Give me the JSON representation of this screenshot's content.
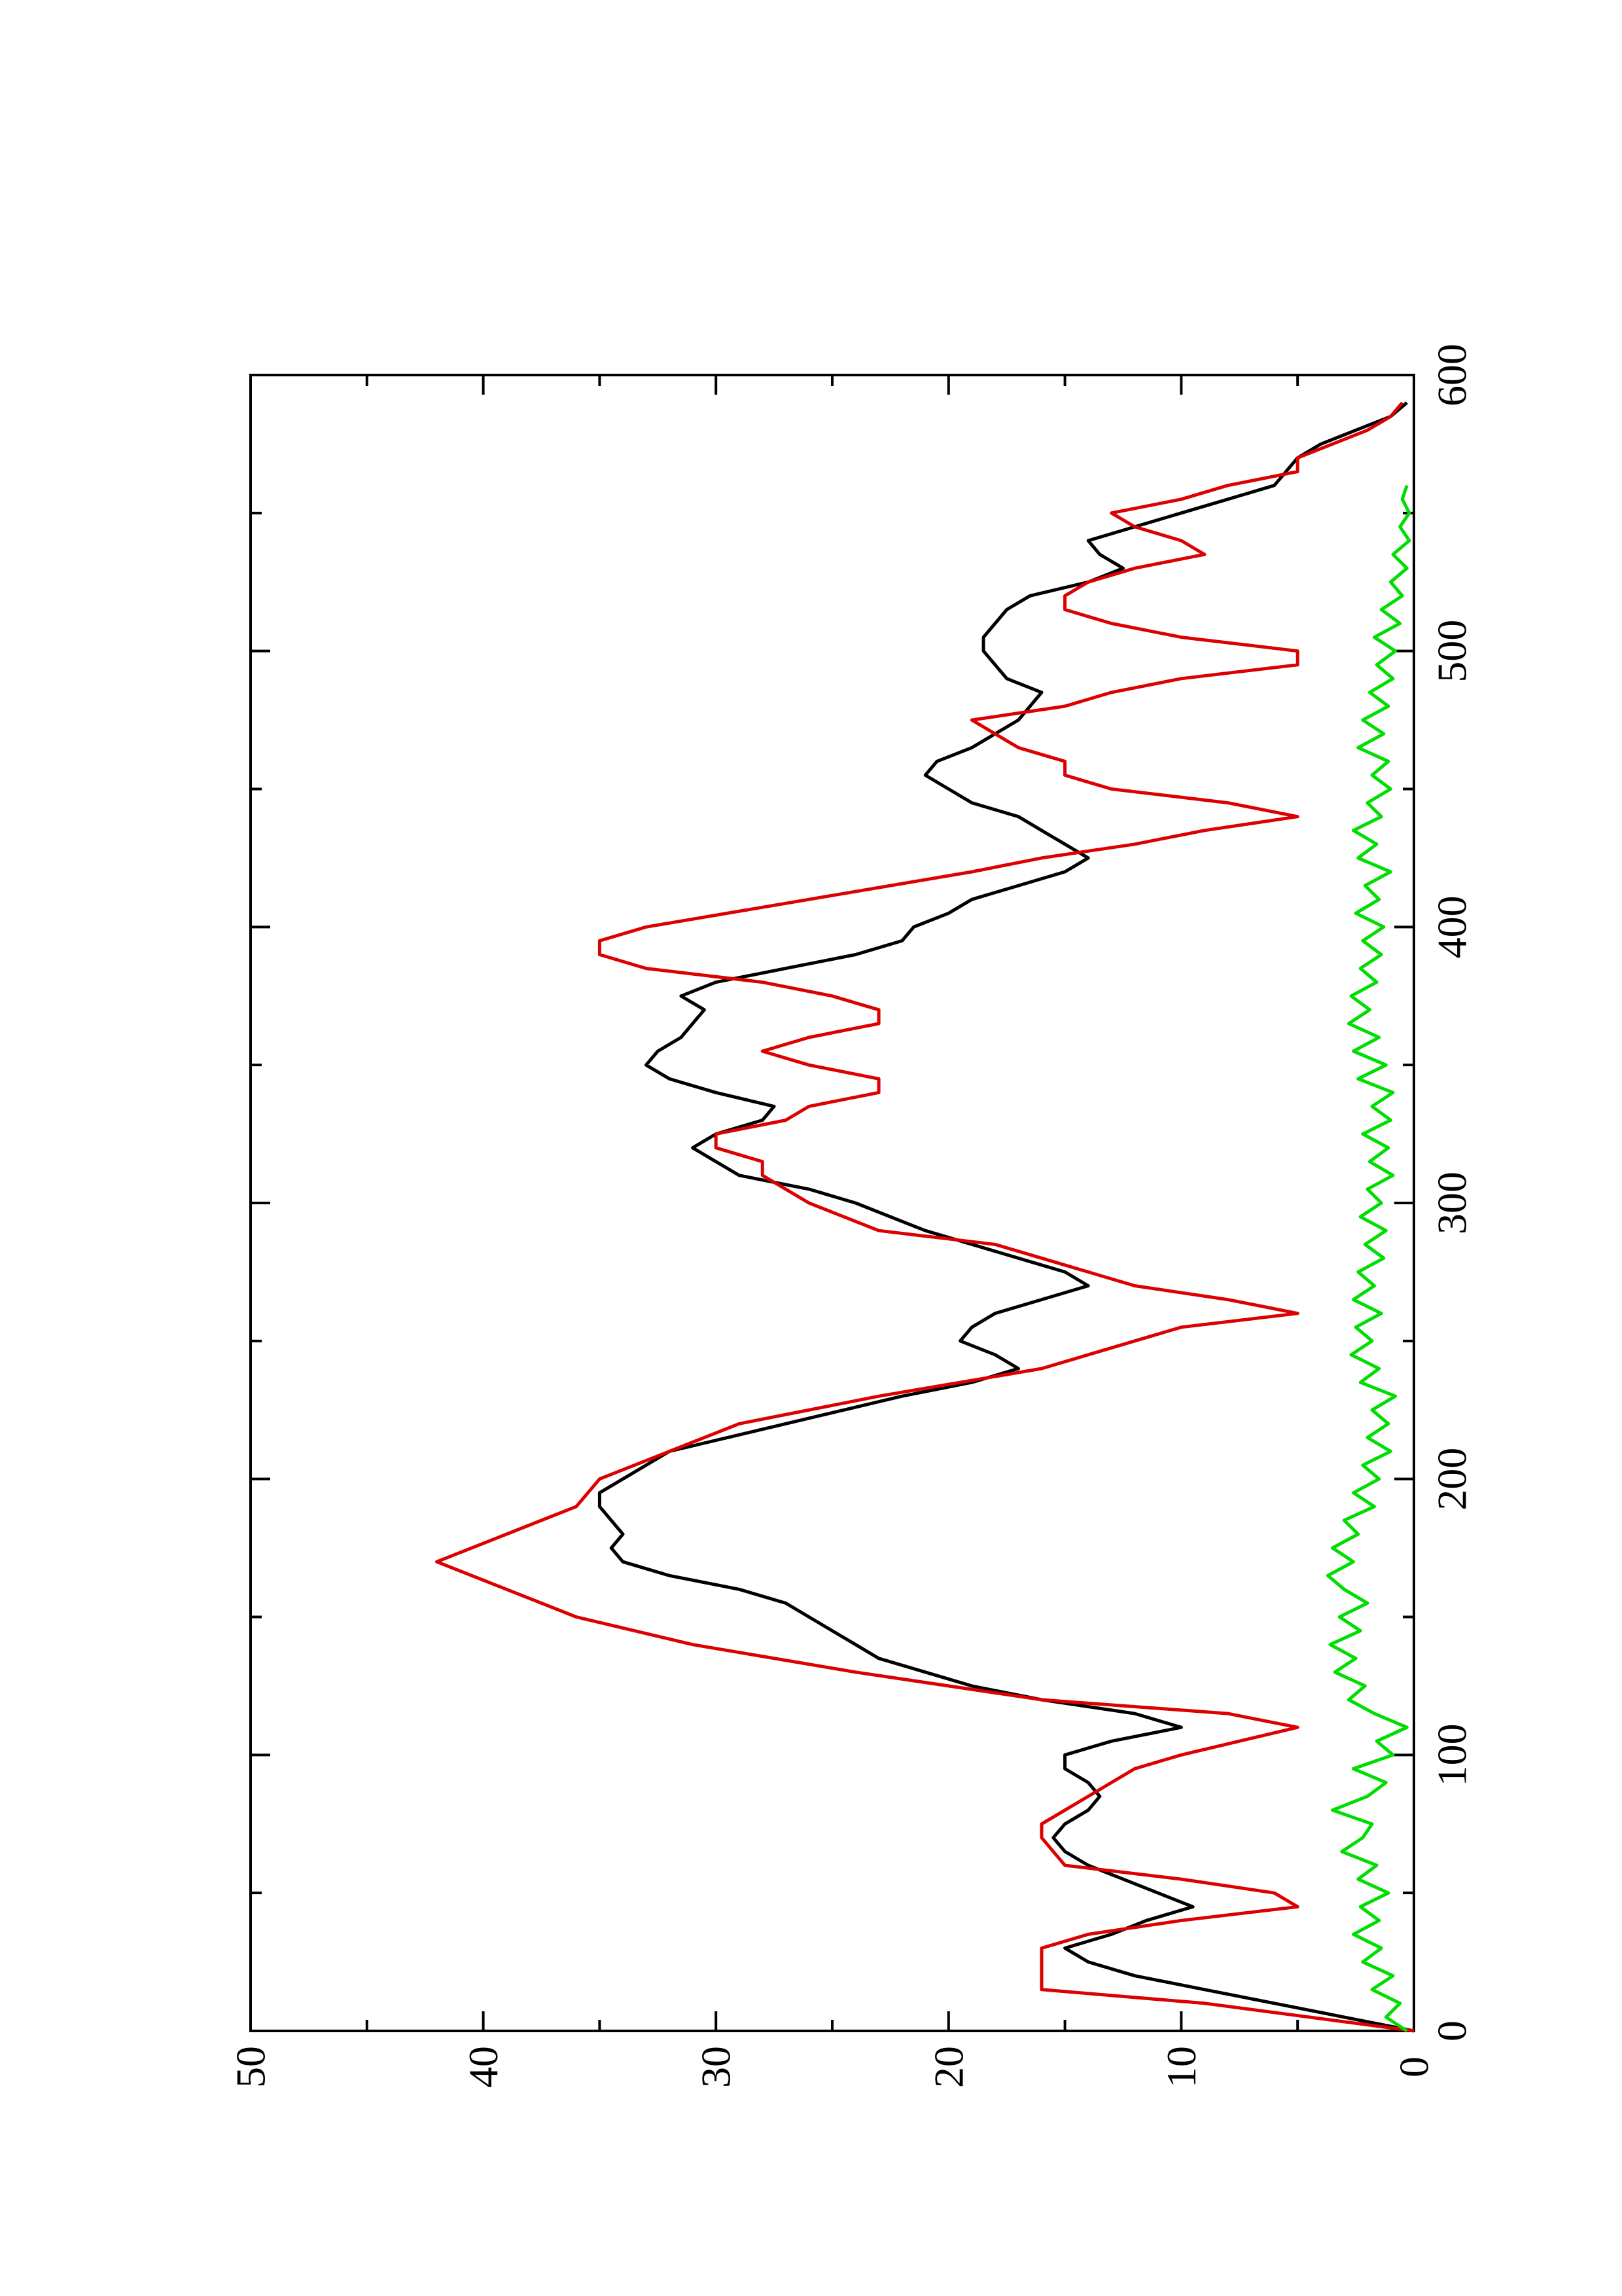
{
  "chart_data": {
    "type": "line",
    "orientation": "rotated-90-ccw",
    "title": "",
    "xlabel": "",
    "ylabel": "",
    "xlim": [
      0,
      600
    ],
    "ylim": [
      0,
      50
    ],
    "x_major_ticks": [
      0,
      100,
      200,
      300,
      400,
      500,
      600
    ],
    "x_minor_ticks": [
      50,
      150,
      250,
      350,
      450,
      550
    ],
    "y_major_ticks": [
      0,
      10,
      20,
      30,
      40,
      50
    ],
    "y_minor_ticks": [
      5,
      15,
      25,
      35,
      45
    ],
    "x_tick_labels": [
      "0",
      "100",
      "200",
      "300",
      "400",
      "500",
      "600"
    ],
    "y_tick_labels": [
      "0",
      "10",
      "20",
      "30",
      "40",
      "50"
    ],
    "grid": false,
    "legend": "none",
    "series": [
      {
        "color": "#000000",
        "points": [
          [
            0,
            0
          ],
          [
            5,
            3
          ],
          [
            10,
            6
          ],
          [
            15,
            9
          ],
          [
            20,
            12
          ],
          [
            25,
            14
          ],
          [
            30,
            15
          ],
          [
            35,
            13
          ],
          [
            40,
            11.5
          ],
          [
            45,
            9.5
          ],
          [
            50,
            11
          ],
          [
            55,
            12.5
          ],
          [
            60,
            14
          ],
          [
            65,
            15
          ],
          [
            70,
            15.5
          ],
          [
            75,
            15
          ],
          [
            80,
            14
          ],
          [
            85,
            13.5
          ],
          [
            90,
            14
          ],
          [
            95,
            15
          ],
          [
            100,
            15
          ],
          [
            105,
            13
          ],
          [
            110,
            10
          ],
          [
            115,
            12
          ],
          [
            120,
            16
          ],
          [
            125,
            19
          ],
          [
            130,
            21
          ],
          [
            135,
            23
          ],
          [
            140,
            24
          ],
          [
            145,
            25
          ],
          [
            150,
            26
          ],
          [
            155,
            27
          ],
          [
            160,
            29
          ],
          [
            165,
            32
          ],
          [
            170,
            34
          ],
          [
            175,
            34.5
          ],
          [
            180,
            34
          ],
          [
            185,
            34.5
          ],
          [
            190,
            35
          ],
          [
            195,
            35
          ],
          [
            200,
            34
          ],
          [
            210,
            32
          ],
          [
            220,
            27
          ],
          [
            230,
            22
          ],
          [
            235,
            19
          ],
          [
            240,
            17
          ],
          [
            245,
            18
          ],
          [
            250,
            19.5
          ],
          [
            255,
            19
          ],
          [
            260,
            18
          ],
          [
            265,
            16
          ],
          [
            270,
            14
          ],
          [
            275,
            15
          ],
          [
            280,
            17
          ],
          [
            290,
            21
          ],
          [
            300,
            24
          ],
          [
            305,
            26
          ],
          [
            310,
            29
          ],
          [
            315,
            30
          ],
          [
            320,
            31
          ],
          [
            325,
            30
          ],
          [
            330,
            28
          ],
          [
            335,
            27.5
          ],
          [
            340,
            30
          ],
          [
            345,
            32
          ],
          [
            350,
            33
          ],
          [
            355,
            32.5
          ],
          [
            360,
            31.5
          ],
          [
            365,
            31
          ],
          [
            370,
            30.5
          ],
          [
            375,
            31.5
          ],
          [
            380,
            30
          ],
          [
            385,
            27
          ],
          [
            390,
            24
          ],
          [
            395,
            22
          ],
          [
            400,
            21.5
          ],
          [
            405,
            20
          ],
          [
            410,
            19
          ],
          [
            415,
            17
          ],
          [
            420,
            15
          ],
          [
            425,
            14
          ],
          [
            430,
            15
          ],
          [
            435,
            16
          ],
          [
            440,
            17
          ],
          [
            445,
            19
          ],
          [
            450,
            20
          ],
          [
            455,
            21
          ],
          [
            460,
            20.5
          ],
          [
            465,
            19
          ],
          [
            470,
            18
          ],
          [
            475,
            17
          ],
          [
            480,
            16.5
          ],
          [
            485,
            16
          ],
          [
            490,
            17.5
          ],
          [
            495,
            18
          ],
          [
            500,
            18.5
          ],
          [
            505,
            18.5
          ],
          [
            510,
            18
          ],
          [
            515,
            17.5
          ],
          [
            520,
            16.5
          ],
          [
            525,
            14
          ],
          [
            530,
            12.5
          ],
          [
            535,
            13.5
          ],
          [
            540,
            14
          ],
          [
            545,
            12
          ],
          [
            550,
            10
          ],
          [
            555,
            8
          ],
          [
            560,
            6
          ],
          [
            565,
            5.5
          ],
          [
            570,
            5
          ],
          [
            575,
            4
          ],
          [
            580,
            2.5
          ],
          [
            585,
            1
          ],
          [
            590,
            0.3
          ]
        ]
      },
      {
        "color": "#dd0000",
        "points": [
          [
            0,
            0
          ],
          [
            10,
            9
          ],
          [
            15,
            16
          ],
          [
            30,
            16
          ],
          [
            35,
            14
          ],
          [
            40,
            10
          ],
          [
            45,
            5
          ],
          [
            50,
            6
          ],
          [
            55,
            10
          ],
          [
            60,
            15
          ],
          [
            70,
            16
          ],
          [
            75,
            16
          ],
          [
            80,
            15
          ],
          [
            85,
            14
          ],
          [
            90,
            13
          ],
          [
            95,
            12
          ],
          [
            100,
            10
          ],
          [
            110,
            5
          ],
          [
            115,
            8
          ],
          [
            120,
            16
          ],
          [
            130,
            24
          ],
          [
            140,
            31
          ],
          [
            150,
            36
          ],
          [
            160,
            39
          ],
          [
            170,
            42
          ],
          [
            180,
            39
          ],
          [
            190,
            36
          ],
          [
            200,
            35
          ],
          [
            210,
            32
          ],
          [
            220,
            29
          ],
          [
            230,
            23
          ],
          [
            240,
            16
          ],
          [
            250,
            12
          ],
          [
            255,
            10
          ],
          [
            260,
            5
          ],
          [
            265,
            8
          ],
          [
            270,
            12
          ],
          [
            280,
            16
          ],
          [
            285,
            18
          ],
          [
            290,
            23
          ],
          [
            300,
            26
          ],
          [
            310,
            28
          ],
          [
            315,
            28
          ],
          [
            320,
            30
          ],
          [
            325,
            30
          ],
          [
            330,
            27
          ],
          [
            335,
            26
          ],
          [
            340,
            23
          ],
          [
            345,
            23
          ],
          [
            350,
            26
          ],
          [
            355,
            28
          ],
          [
            360,
            26
          ],
          [
            365,
            23
          ],
          [
            370,
            23
          ],
          [
            375,
            25
          ],
          [
            380,
            28
          ],
          [
            385,
            33
          ],
          [
            390,
            35
          ],
          [
            395,
            35
          ],
          [
            400,
            33
          ],
          [
            410,
            26
          ],
          [
            420,
            19
          ],
          [
            425,
            16
          ],
          [
            430,
            12
          ],
          [
            435,
            9
          ],
          [
            440,
            5
          ],
          [
            445,
            8
          ],
          [
            450,
            13
          ],
          [
            455,
            15
          ],
          [
            460,
            15
          ],
          [
            465,
            17
          ],
          [
            470,
            18
          ],
          [
            475,
            19
          ],
          [
            480,
            15
          ],
          [
            485,
            13
          ],
          [
            490,
            10
          ],
          [
            495,
            5
          ],
          [
            500,
            5
          ],
          [
            505,
            10
          ],
          [
            510,
            13
          ],
          [
            515,
            15
          ],
          [
            520,
            15
          ],
          [
            525,
            14
          ],
          [
            530,
            12
          ],
          [
            535,
            9
          ],
          [
            540,
            10
          ],
          [
            545,
            12
          ],
          [
            550,
            13
          ],
          [
            555,
            10
          ],
          [
            560,
            8
          ],
          [
            565,
            5
          ],
          [
            570,
            5
          ],
          [
            575,
            3.5
          ],
          [
            580,
            2
          ],
          [
            585,
            1
          ],
          [
            590,
            0.5
          ]
        ]
      },
      {
        "color": "#00dd00",
        "points": [
          [
            0,
            0.3
          ],
          [
            5,
            1.2
          ],
          [
            10,
            0.6
          ],
          [
            15,
            1.8
          ],
          [
            20,
            0.9
          ],
          [
            25,
            2.2
          ],
          [
            30,
            1.4
          ],
          [
            35,
            2.6
          ],
          [
            40,
            1.5
          ],
          [
            45,
            2.3
          ],
          [
            50,
            1.1
          ],
          [
            55,
            2.4
          ],
          [
            60,
            1.6
          ],
          [
            65,
            3.1
          ],
          [
            70,
            2.2
          ],
          [
            75,
            1.8
          ],
          [
            80,
            3.5
          ],
          [
            85,
            2.0
          ],
          [
            90,
            1.2
          ],
          [
            95,
            2.6
          ],
          [
            100,
            0.9
          ],
          [
            105,
            1.6
          ],
          [
            110,
            0.3
          ],
          [
            115,
            1.7
          ],
          [
            120,
            2.8
          ],
          [
            125,
            2.1
          ],
          [
            130,
            3.4
          ],
          [
            135,
            2.5
          ],
          [
            140,
            3.6
          ],
          [
            145,
            2.3
          ],
          [
            150,
            3.2
          ],
          [
            155,
            2.0
          ],
          [
            160,
            3.0
          ],
          [
            165,
            3.7
          ],
          [
            170,
            2.6
          ],
          [
            175,
            3.5
          ],
          [
            180,
            2.4
          ],
          [
            185,
            3.0
          ],
          [
            190,
            1.7
          ],
          [
            195,
            2.6
          ],
          [
            200,
            1.5
          ],
          [
            205,
            2.2
          ],
          [
            210,
            1.0
          ],
          [
            215,
            2.0
          ],
          [
            220,
            1.1
          ],
          [
            225,
            1.8
          ],
          [
            230,
            0.8
          ],
          [
            235,
            2.3
          ],
          [
            240,
            1.5
          ],
          [
            245,
            2.7
          ],
          [
            250,
            1.8
          ],
          [
            255,
            2.5
          ],
          [
            260,
            1.4
          ],
          [
            265,
            2.6
          ],
          [
            270,
            1.7
          ],
          [
            275,
            2.4
          ],
          [
            280,
            1.3
          ],
          [
            285,
            2.1
          ],
          [
            290,
            1.2
          ],
          [
            295,
            2.3
          ],
          [
            300,
            1.4
          ],
          [
            305,
            2.0
          ],
          [
            310,
            0.9
          ],
          [
            315,
            1.9
          ],
          [
            320,
            1.1
          ],
          [
            325,
            2.2
          ],
          [
            330,
            1.0
          ],
          [
            335,
            1.8
          ],
          [
            340,
            0.9
          ],
          [
            345,
            2.4
          ],
          [
            350,
            1.2
          ],
          [
            355,
            2.6
          ],
          [
            360,
            1.5
          ],
          [
            365,
            2.8
          ],
          [
            370,
            1.9
          ],
          [
            375,
            2.7
          ],
          [
            380,
            1.6
          ],
          [
            385,
            2.3
          ],
          [
            390,
            1.4
          ],
          [
            395,
            2.2
          ],
          [
            400,
            1.3
          ],
          [
            405,
            2.5
          ],
          [
            410,
            1.5
          ],
          [
            415,
            2.1
          ],
          [
            420,
            1.0
          ],
          [
            425,
            2.4
          ],
          [
            430,
            1.6
          ],
          [
            435,
            2.6
          ],
          [
            440,
            1.4
          ],
          [
            445,
            2.0
          ],
          [
            450,
            1.0
          ],
          [
            455,
            1.8
          ],
          [
            460,
            1.1
          ],
          [
            465,
            2.4
          ],
          [
            470,
            1.3
          ],
          [
            475,
            2.2
          ],
          [
            480,
            1.1
          ],
          [
            485,
            1.9
          ],
          [
            490,
            0.9
          ],
          [
            495,
            1.6
          ],
          [
            500,
            0.8
          ],
          [
            505,
            1.7
          ],
          [
            510,
            0.6
          ],
          [
            515,
            1.4
          ],
          [
            520,
            0.5
          ],
          [
            525,
            1.0
          ],
          [
            530,
            0.3
          ],
          [
            535,
            0.9
          ],
          [
            540,
            0.2
          ],
          [
            545,
            0.6
          ],
          [
            550,
            0.2
          ],
          [
            555,
            0.5
          ],
          [
            560,
            0.3
          ]
        ]
      }
    ]
  }
}
